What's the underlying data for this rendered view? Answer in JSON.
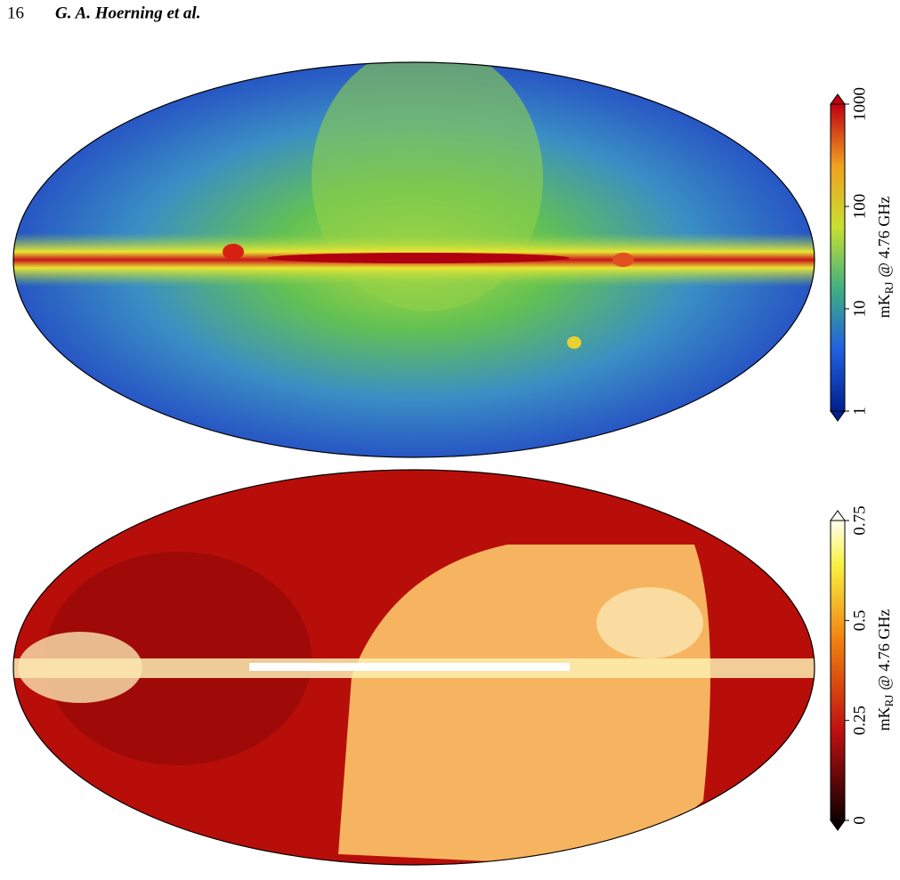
{
  "header": {
    "page_number": "16",
    "authors": "G. A. Hoerning et al."
  },
  "maps": [
    {
      "colorbar": {
        "label": {
          "main": "mK",
          "sub": "RJ",
          "rest": "@ 4.76 GHz"
        },
        "scale": "log",
        "lim": [
          1,
          1000
        ],
        "ticks": [
          1,
          10,
          100,
          1000
        ]
      }
    },
    {
      "colorbar": {
        "label": {
          "main": "mK",
          "sub": "RJ",
          "rest": "@ 4.76 GHz"
        },
        "scale": "linear",
        "lim": [
          0,
          0.75
        ],
        "ticks": [
          0,
          0.25,
          0.5,
          0.75
        ]
      }
    }
  ]
}
